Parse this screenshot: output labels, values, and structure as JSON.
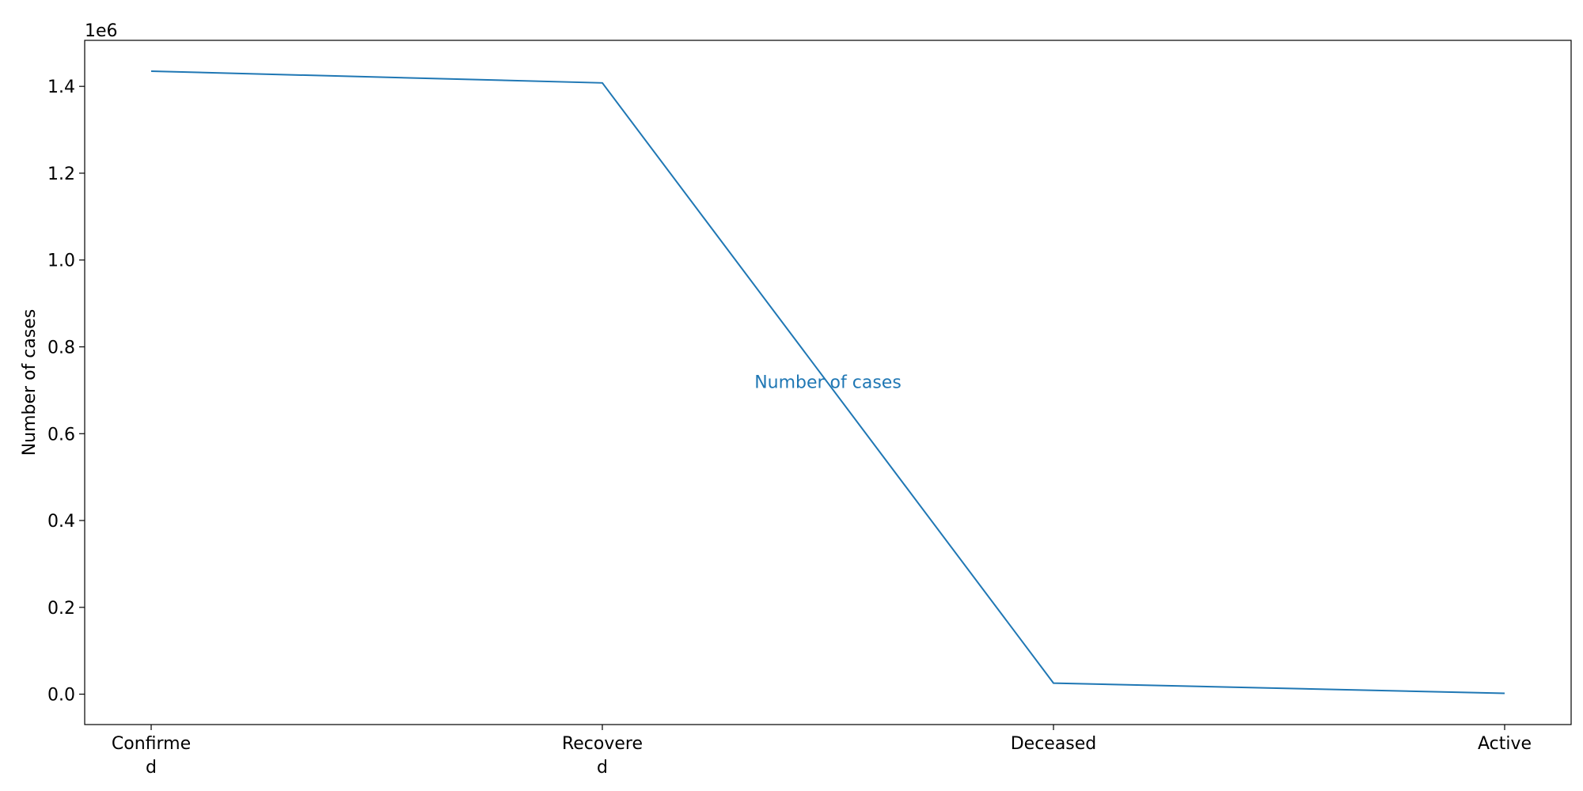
{
  "chart_data": {
    "type": "line",
    "categories": [
      "Confirmed",
      "Recovered",
      "Deceased",
      "Active"
    ],
    "category_tick_labels": [
      [
        "Confirme",
        "d"
      ],
      [
        "Recovere",
        "d"
      ],
      [
        "Deceased"
      ],
      [
        "Active"
      ]
    ],
    "series": [
      {
        "values": [
          1435000,
          1408000,
          25500,
          2000
        ]
      }
    ],
    "ylabel": "Number of cases",
    "xlabel": "",
    "title": "",
    "y_offset_label": "1e6",
    "y_scale": 1000000,
    "yticks": [
      0.0,
      0.2,
      0.4,
      0.6,
      0.8,
      1.0,
      1.2,
      1.4
    ],
    "ytick_labels": [
      "0.0",
      "0.2",
      "0.4",
      "0.6",
      "0.8",
      "1.0",
      "1.2",
      "1.4"
    ],
    "ylim": [
      -70000,
      1506000
    ],
    "annotation": "Number of cases",
    "annotation_at": {
      "category": 1.5,
      "y": 720000
    },
    "grid": false,
    "legend": "none",
    "colors": {
      "line": "#1f77b4",
      "annotation": "#1f77b4",
      "axes": "#000000"
    }
  }
}
